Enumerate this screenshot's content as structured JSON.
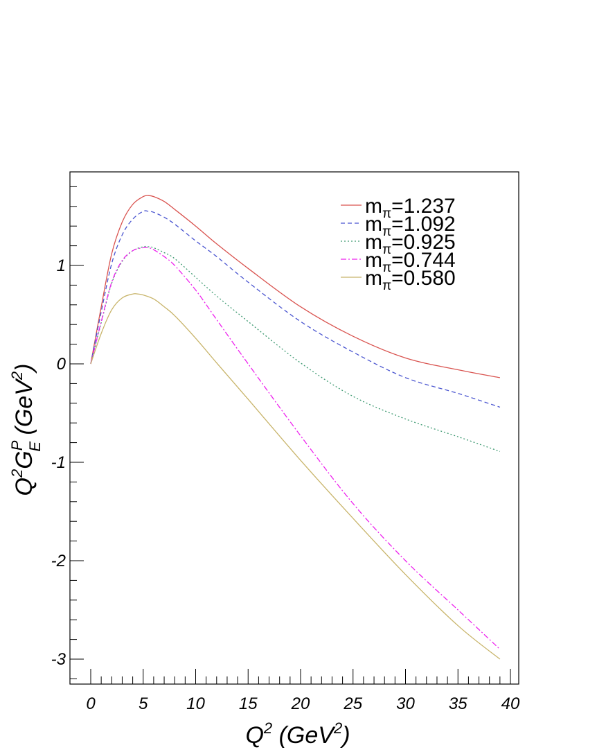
{
  "chart_data": {
    "type": "line",
    "xlabel": "Q",
    "xlabel_sup": "2",
    "xlabel_unit_open": " (GeV",
    "xlabel_unit_sup": "2",
    "xlabel_unit_close": ")",
    "ylabel_Q": "Q",
    "ylabel_Q_sup": "2",
    "ylabel_G": "G",
    "ylabel_G_sup": "P",
    "ylabel_G_sub": "E",
    "ylabel_unit_open": " (GeV",
    "ylabel_unit_sup": "2",
    "ylabel_unit_close": ")",
    "xlim": [
      -2,
      41
    ],
    "ylim": [
      -3.2,
      1.9
    ],
    "xticks": [
      0,
      5,
      10,
      15,
      20,
      25,
      30,
      35,
      40
    ],
    "yticks": [
      -3,
      -2,
      -1,
      0,
      1
    ],
    "legend_position": "top-right",
    "grid": false,
    "series": [
      {
        "name": "m",
        "name_sub": "π",
        "name_value": "=1.237",
        "color": "#d9534f",
        "dash": "solid",
        "x": [
          0,
          1,
          2,
          3,
          4,
          5,
          5.5,
          6,
          7,
          8,
          10,
          12,
          15,
          20,
          25,
          30,
          35,
          39
        ],
        "y": [
          0,
          0.58,
          1.12,
          1.44,
          1.62,
          1.7,
          1.71,
          1.7,
          1.65,
          1.57,
          1.4,
          1.22,
          0.97,
          0.58,
          0.28,
          0.06,
          -0.06,
          -0.14
        ]
      },
      {
        "name": "m",
        "name_sub": "π",
        "name_value": "=1.092",
        "color": "#4a55d0",
        "dash": "dashed",
        "x": [
          0,
          1,
          2,
          3,
          4,
          5,
          5.5,
          6,
          7,
          8,
          10,
          12,
          15,
          20,
          25,
          30,
          35,
          39
        ],
        "y": [
          0,
          0.53,
          1.02,
          1.31,
          1.47,
          1.55,
          1.55,
          1.54,
          1.49,
          1.42,
          1.25,
          1.09,
          0.83,
          0.43,
          0.12,
          -0.14,
          -0.3,
          -0.44
        ]
      },
      {
        "name": "m",
        "name_sub": "π",
        "name_value": "=0.925",
        "color": "#3f9a72",
        "dash": "dotted",
        "x": [
          0,
          1,
          2,
          3,
          4,
          5,
          5.5,
          6,
          7,
          8,
          10,
          12,
          15,
          20,
          25,
          30,
          35,
          39
        ],
        "y": [
          0,
          0.42,
          0.82,
          1.04,
          1.15,
          1.19,
          1.19,
          1.18,
          1.13,
          1.07,
          0.88,
          0.69,
          0.43,
          0.01,
          -0.33,
          -0.56,
          -0.74,
          -0.89
        ]
      },
      {
        "name": "m",
        "name_sub": "π",
        "name_value": "=0.744",
        "color": "#ee22ee",
        "dash": "dashdot",
        "x": [
          0,
          1,
          2,
          3,
          4,
          5,
          5.5,
          6,
          7,
          8,
          10,
          12,
          15,
          20,
          25,
          30,
          35,
          39
        ],
        "y": [
          0,
          0.43,
          0.83,
          1.05,
          1.15,
          1.18,
          1.18,
          1.16,
          1.09,
          1.0,
          0.75,
          0.45,
          0.0,
          -0.73,
          -1.42,
          -2.0,
          -2.5,
          -2.9
        ]
      },
      {
        "name": "m",
        "name_sub": "π",
        "name_value": "=0.580",
        "color": "#c8b46a",
        "dash": "solid",
        "x": [
          0,
          1,
          2,
          3,
          4,
          4.5,
          5,
          6,
          7,
          8,
          10,
          12,
          15,
          20,
          25,
          30,
          35,
          39
        ],
        "y": [
          0,
          0.31,
          0.55,
          0.67,
          0.71,
          0.71,
          0.7,
          0.66,
          0.58,
          0.49,
          0.26,
          0.01,
          -0.36,
          -0.98,
          -1.57,
          -2.14,
          -2.66,
          -3.0
        ]
      }
    ]
  }
}
